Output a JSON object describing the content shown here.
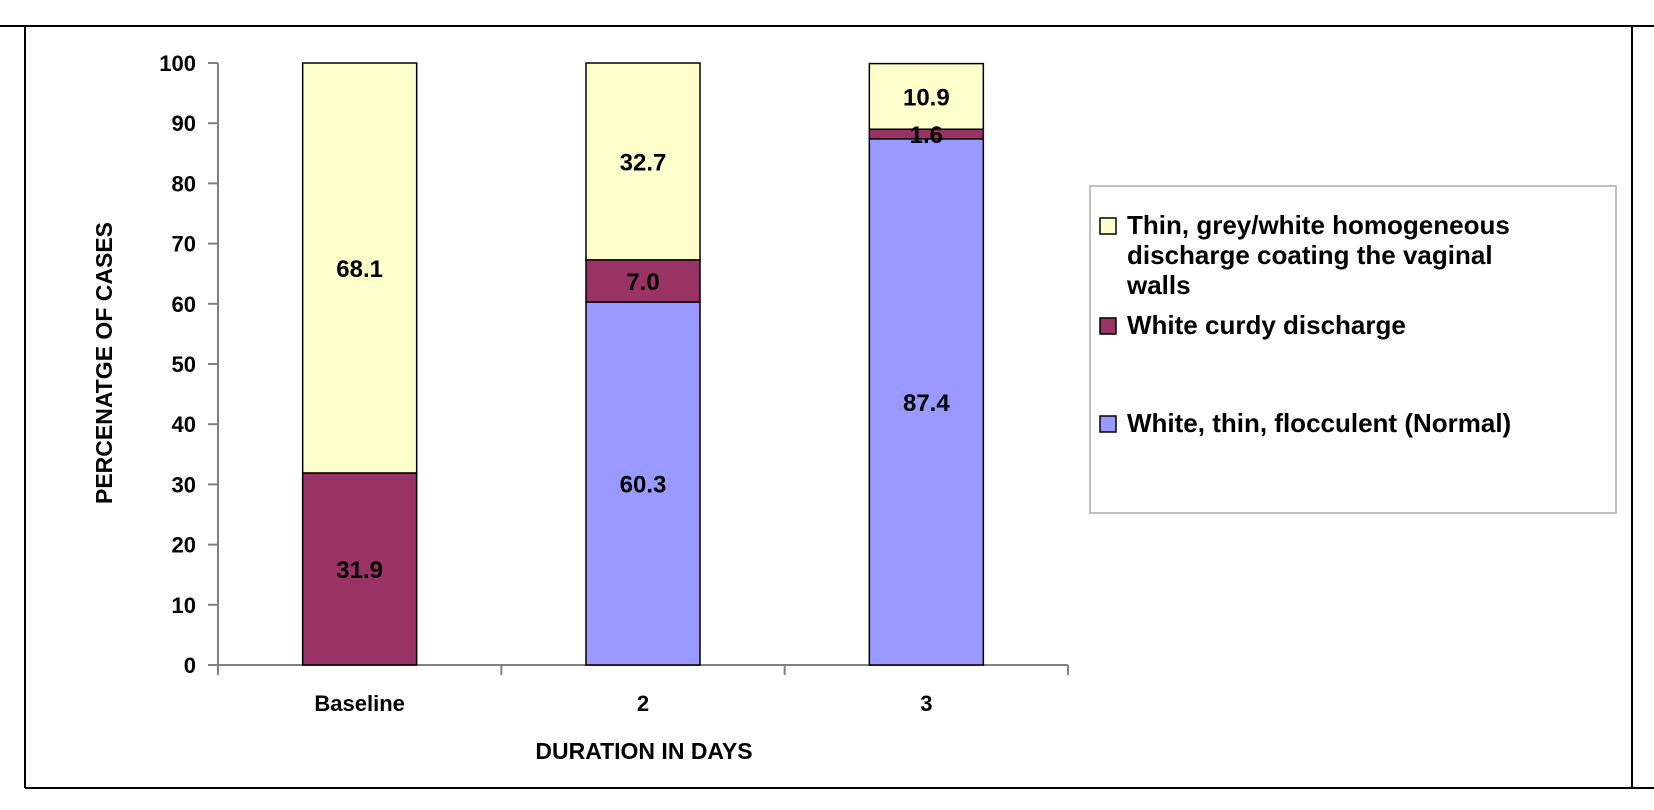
{
  "chart_data": {
    "type": "bar",
    "stacked": true,
    "title": "",
    "xlabel": "DURATION IN DAYS",
    "ylabel": "PERCENATGE OF CASES",
    "ylim": [
      0,
      100
    ],
    "yticks": [
      "0",
      "10",
      "20",
      "30",
      "40",
      "50",
      "60",
      "70",
      "80",
      "90",
      "100"
    ],
    "categories": [
      "Baseline",
      "2",
      "3"
    ],
    "grid": false,
    "legend_position": "right",
    "series": [
      {
        "name": "White, thin, flocculent (Normal)",
        "color": "#9999ff",
        "values": [
          0,
          60.3,
          87.4
        ],
        "labels": [
          "",
          "60.3",
          "87.4"
        ]
      },
      {
        "name": "White curdy discharge",
        "color": "#993366",
        "values": [
          31.9,
          7.0,
          1.6
        ],
        "labels": [
          "31.9",
          "7.0",
          "1.6"
        ]
      },
      {
        "name": "Thin, grey/white homogeneous discharge coating the vaginal walls",
        "color": "#ffffcc",
        "values": [
          68.1,
          32.7,
          10.9
        ],
        "labels": [
          "68.1",
          "32.7",
          "10.9"
        ]
      }
    ],
    "legend": [
      {
        "series": 2,
        "lines": [
          "Thin, grey/white homogeneous",
          "discharge coating the vaginal",
          "walls"
        ]
      },
      {
        "series": 1,
        "lines": [
          "White curdy discharge"
        ]
      },
      {
        "series": 0,
        "lines": [
          "White, thin, flocculent (Normal)"
        ]
      }
    ]
  }
}
